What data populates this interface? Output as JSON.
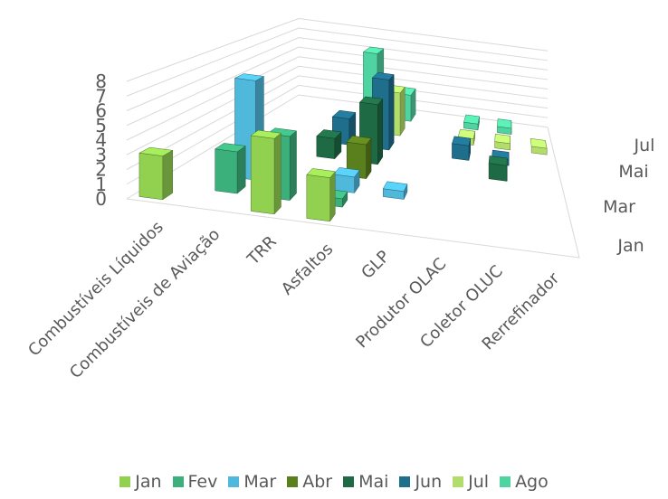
{
  "chart_data": {
    "type": "bar",
    "subtype": "3d-column",
    "title": "",
    "xlabel": "",
    "ylabel": "",
    "ylim": [
      0,
      8
    ],
    "yticks": [
      "0",
      "1",
      "2",
      "3",
      "4",
      "5",
      "6",
      "7",
      "8"
    ],
    "grid": true,
    "legend_position": "bottom",
    "categories": [
      "Combustíveis Líquidos",
      "Combustíveis de Aviação",
      "TRR",
      "Asfaltos",
      "GLP",
      "Produtor OLAC",
      "Coletor OLUC",
      "Rerrefinador"
    ],
    "depth_axis_labels": [
      "Jan",
      "Mar",
      "Mai",
      "Jul"
    ],
    "series": [
      {
        "name": "Jan",
        "color": "#92d050",
        "values": [
          3,
          0,
          5.2,
          3,
          0,
          0,
          0,
          0
        ]
      },
      {
        "name": "Fev",
        "color": "#3cb07b",
        "values": [
          0,
          3,
          4.6,
          0.6,
          0,
          0,
          0,
          0
        ]
      },
      {
        "name": "Mar",
        "color": "#4fb8db",
        "values": [
          0,
          7.5,
          0,
          1.2,
          0.6,
          0,
          0,
          0
        ]
      },
      {
        "name": "Abr",
        "color": "#5a7f1d",
        "values": [
          0,
          0.5,
          0,
          2.7,
          0,
          0,
          0,
          0
        ]
      },
      {
        "name": "Mai",
        "color": "#1e6a44",
        "values": [
          0,
          0,
          1.7,
          5,
          0,
          0,
          1.3,
          0
        ]
      },
      {
        "name": "Jun",
        "color": "#1f6e8c",
        "values": [
          0,
          0,
          2.3,
          6.2,
          0,
          1.3,
          0.5,
          0
        ]
      },
      {
        "name": "Jul",
        "color": "#b3dd6b",
        "values": [
          0,
          0,
          0,
          4,
          0,
          0.6,
          0.6,
          0.6
        ]
      },
      {
        "name": "Ago",
        "color": "#4fd3a0",
        "values": [
          0,
          0,
          6.3,
          2.6,
          0,
          0.6,
          0.6,
          0
        ]
      }
    ]
  },
  "legend": {
    "items": [
      "Jan",
      "Fev",
      "Mar",
      "Abr",
      "Mai",
      "Jun",
      "Jul",
      "Ago"
    ]
  }
}
